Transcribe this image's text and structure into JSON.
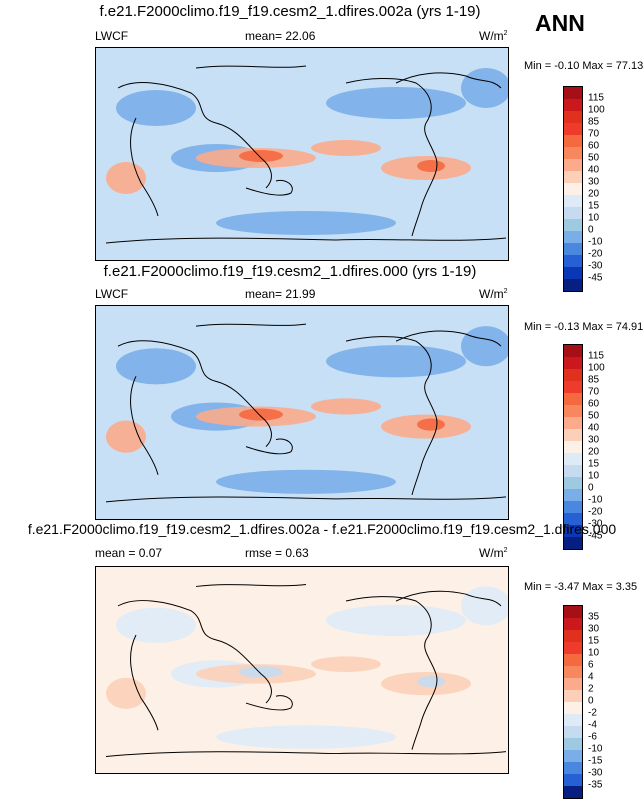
{
  "season": "ANN",
  "panels": [
    {
      "title": "f.e21.F2000climo.f19_f19.cesm2_1.dfires.002a (yrs 1-19)",
      "left_label": "LWCF",
      "mid_label": "mean=  22.06",
      "rmse_label": "",
      "unit": "W/m",
      "unit_exp": "2",
      "minmax": "Min = -0.10 Max =  77.13",
      "levels": [
        "115",
        "100",
        "85",
        "70",
        "60",
        "50",
        "40",
        "30",
        "20",
        "15",
        "10",
        "0",
        "-10",
        "-20",
        "-30",
        "-45"
      ],
      "colors": [
        "#a50f15",
        "#cb181d",
        "#e0301e",
        "#ef3b2c",
        "#f5693f",
        "#f8875e",
        "#fbab8c",
        "#fcd0b8",
        "#fdf0e6",
        "#deebf7",
        "#c6dbef",
        "#9ecae1",
        "#7aaee9",
        "#4a88e0",
        "#2660d4",
        "#0a37b5",
        "#061f80"
      ],
      "map_bg": "#c8e0f6",
      "blob_colors": [
        "#7aaee9",
        "#fbab8c",
        "#f5693f"
      ]
    },
    {
      "title": "f.e21.F2000climo.f19_f19.cesm2_1.dfires.000 (yrs 1-19)",
      "left_label": "LWCF",
      "mid_label": "mean=  21.99",
      "rmse_label": "",
      "unit": "W/m",
      "unit_exp": "2",
      "minmax": "Min = -0.13 Max =  74.91",
      "levels": [
        "115",
        "100",
        "85",
        "70",
        "60",
        "50",
        "40",
        "30",
        "20",
        "15",
        "10",
        "0",
        "-10",
        "-20",
        "-30",
        "-45"
      ],
      "colors": [
        "#a50f15",
        "#cb181d",
        "#e0301e",
        "#ef3b2c",
        "#f5693f",
        "#f8875e",
        "#fbab8c",
        "#fcd0b8",
        "#fdf0e6",
        "#deebf7",
        "#c6dbef",
        "#9ecae1",
        "#7aaee9",
        "#4a88e0",
        "#2660d4",
        "#0a37b5",
        "#061f80"
      ],
      "map_bg": "#c8e0f6",
      "blob_colors": [
        "#7aaee9",
        "#fbab8c",
        "#f5693f"
      ]
    },
    {
      "title": "f.e21.F2000climo.f19_f19.cesm2_1.dfires.002a - f.e21.F2000climo.f19_f19.cesm2_1.dfires.000",
      "left_label": "mean =   0.07",
      "mid_label": "rmse =   0.63",
      "rmse_label": "",
      "unit": "W/m",
      "unit_exp": "2",
      "minmax": "Min = -3.47 Max =   3.35",
      "levels": [
        "35",
        "30",
        "15",
        "10",
        "6",
        "4",
        "2",
        "0",
        "-2",
        "-4",
        "-6",
        "-10",
        "-15",
        "-30",
        "-35"
      ],
      "colors": [
        "#a50f15",
        "#cb181d",
        "#e0301e",
        "#ef3b2c",
        "#f5693f",
        "#f8875e",
        "#fbab8c",
        "#fcd0b8",
        "#fdf0e6",
        "#deebf7",
        "#c6dbef",
        "#9ecae1",
        "#7aaee9",
        "#4a88e0",
        "#2660d4",
        "#061f80"
      ],
      "map_bg": "#fdf0e6",
      "blob_colors": [
        "#deebf7",
        "#fcd0b8",
        "#c6dbef"
      ]
    }
  ],
  "chart_data": [
    {
      "type": "heatmap",
      "title": "f.e21.F2000climo.f19_f19.cesm2_1.dfires.002a (yrs 1-19)",
      "variable": "LWCF",
      "units": "W/m2",
      "mean": 22.06,
      "min": -0.1,
      "max": 77.13,
      "contour_levels": [
        -45,
        -30,
        -20,
        -10,
        0,
        10,
        15,
        20,
        30,
        40,
        50,
        60,
        70,
        85,
        100,
        115
      ]
    },
    {
      "type": "heatmap",
      "title": "f.e21.F2000climo.f19_f19.cesm2_1.dfires.000 (yrs 1-19)",
      "variable": "LWCF",
      "units": "W/m2",
      "mean": 21.99,
      "min": -0.13,
      "max": 74.91,
      "contour_levels": [
        -45,
        -30,
        -20,
        -10,
        0,
        10,
        15,
        20,
        30,
        40,
        50,
        60,
        70,
        85,
        100,
        115
      ]
    },
    {
      "type": "heatmap",
      "title": "f.e21.F2000climo.f19_f19.cesm2_1.dfires.002a - f.e21.F2000climo.f19_f19.cesm2_1.dfires.000",
      "units": "W/m2",
      "mean": 0.07,
      "rmse": 0.63,
      "min": -3.47,
      "max": 3.35,
      "contour_levels": [
        -35,
        -30,
        -15,
        -10,
        -6,
        -4,
        -2,
        0,
        2,
        4,
        6,
        10,
        15,
        30,
        35
      ]
    }
  ]
}
